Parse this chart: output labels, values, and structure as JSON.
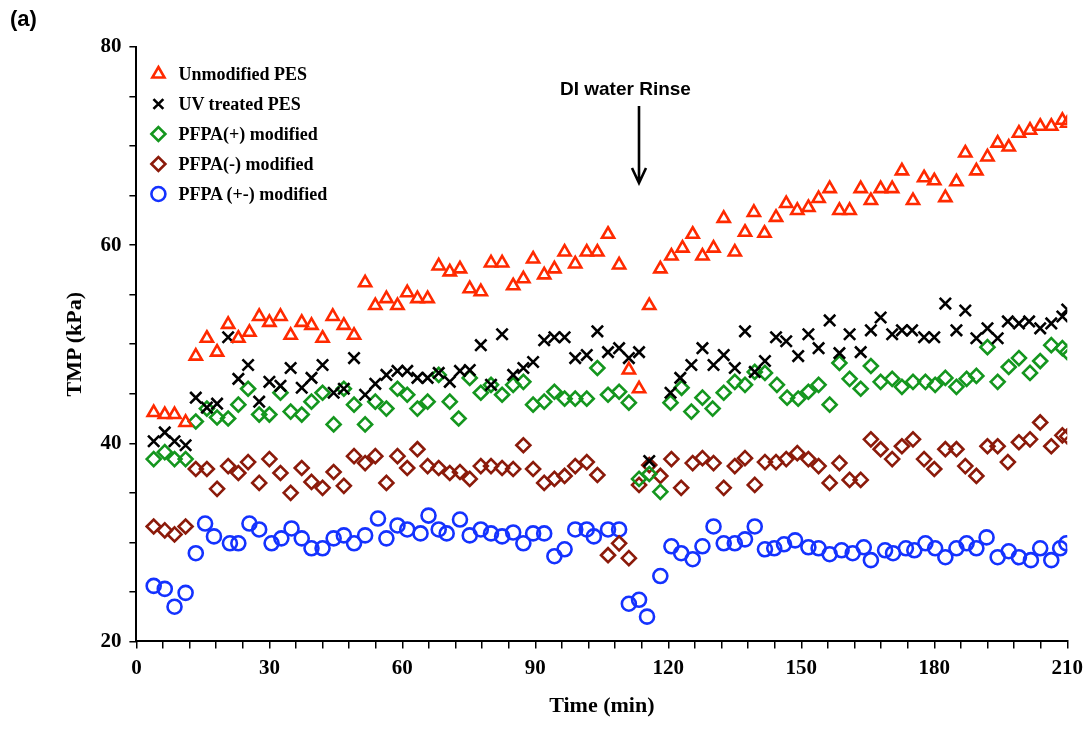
{
  "chart_data": {
    "type": "scatter",
    "xlabel": "Time (min)",
    "ylabel": "TMP (kPa)",
    "xlim": [
      0,
      210
    ],
    "ylim": [
      20,
      80
    ],
    "xticks": [
      0,
      {
        "value": 6,
        "label": null
      },
      {
        "value": 12,
        "label": null
      },
      {
        "value": 18,
        "label": null
      },
      {
        "value": 24,
        "label": null
      },
      30,
      {
        "value": 36,
        "label": null
      },
      {
        "value": 42,
        "label": null
      },
      {
        "value": 48,
        "label": null
      },
      {
        "value": 54,
        "label": null
      },
      60,
      {
        "value": 66,
        "label": null
      },
      {
        "value": 72,
        "label": null
      },
      {
        "value": 78,
        "label": null
      },
      {
        "value": 84,
        "label": null
      },
      90,
      {
        "value": 96,
        "label": null
      },
      {
        "value": 102,
        "label": null
      },
      {
        "value": 108,
        "label": null
      },
      {
        "value": 114,
        "label": null
      },
      120,
      {
        "value": 126,
        "label": null
      },
      {
        "value": 132,
        "label": null
      },
      {
        "value": 138,
        "label": null
      },
      {
        "value": 144,
        "label": null
      },
      150,
      {
        "value": 156,
        "label": null
      },
      {
        "value": 162,
        "label": null
      },
      {
        "value": 168,
        "label": null
      },
      {
        "value": 174,
        "label": null
      },
      180,
      {
        "value": 186,
        "label": null
      },
      {
        "value": 192,
        "label": null
      },
      {
        "value": 198,
        "label": null
      },
      {
        "value": 204,
        "label": null
      },
      210
    ],
    "yticks": [
      20,
      {
        "value": 25,
        "label": null
      },
      {
        "value": 30,
        "label": null
      },
      {
        "value": 35,
        "label": null
      },
      40,
      {
        "value": 45,
        "label": null
      },
      {
        "value": 50,
        "label": null
      },
      {
        "value": 55,
        "label": null
      },
      60,
      {
        "value": 65,
        "label": null
      },
      {
        "value": 70,
        "label": null
      },
      {
        "value": 75,
        "label": null
      },
      80
    ],
    "grid": false,
    "legend": "top left",
    "annotations": [
      "(a)",
      "DI water Rinse"
    ],
    "series": [
      {
        "name": "Unmodified PES",
        "color": "#ff2a00",
        "marker": "triangle",
        "x": [
          3.9,
          6.4,
          8.6,
          11.1,
          13.4,
          15.9,
          18.2,
          20.7,
          23,
          25.5,
          27.7,
          30,
          32.5,
          34.8,
          37.3,
          39.5,
          42,
          44.3,
          46.8,
          49.1,
          51.6,
          53.9,
          56.4,
          58.9,
          61.1,
          63.4,
          65.7,
          68.2,
          70.7,
          73,
          75.2,
          77.7,
          80,
          82.5,
          85,
          87.3,
          89.5,
          92,
          94.3,
          96.6,
          99,
          101.6,
          104,
          106.4,
          108.9,
          111.1,
          113.4,
          115.7,
          118.2,
          120.7,
          123.2,
          125.5,
          127.7,
          130.2,
          132.5,
          135,
          137.3,
          139.3,
          141.7,
          144.3,
          146.6,
          149.1,
          151.6,
          153.9,
          156.4,
          158.6,
          160.9,
          163.4,
          165.7,
          167.9,
          170.5,
          172.7,
          175.2,
          177.7,
          180,
          182.5,
          185,
          187,
          189.5,
          192,
          194.3,
          196.8,
          199.1,
          201.6,
          203.9,
          206.4,
          208.9,
          210
        ],
        "values": [
          43.1,
          42.9,
          42.9,
          42.1,
          48.8,
          50.6,
          49.2,
          52.0,
          50.6,
          51.2,
          52.8,
          52.2,
          52.8,
          50.9,
          52.2,
          51.9,
          50.6,
          52.8,
          51.9,
          50.9,
          56.2,
          53.9,
          54.6,
          53.9,
          55.2,
          54.6,
          54.6,
          57.9,
          57.3,
          57.6,
          55.6,
          55.3,
          58.2,
          58.2,
          55.9,
          56.6,
          58.6,
          57.0,
          57.6,
          59.3,
          58.1,
          59.3,
          59.3,
          61.1,
          58.0,
          47.4,
          45.5,
          53.9,
          57.6,
          58.9,
          59.7,
          61.1,
          58.9,
          59.7,
          62.7,
          59.3,
          61.3,
          63.3,
          61.2,
          62.8,
          64.2,
          63.5,
          63.8,
          64.7,
          65.7,
          63.5,
          63.5,
          65.7,
          64.5,
          65.7,
          65.7,
          67.5,
          64.5,
          66.8,
          66.5,
          64.8,
          66.4,
          69.3,
          67.5,
          68.9,
          70.3,
          69.9,
          71.3,
          71.6,
          72.0,
          72.0,
          72.6,
          72.3
        ]
      },
      {
        "name": "UV treated PES",
        "color": "#000000",
        "marker": "cross",
        "x": [
          3.9,
          6.4,
          8.6,
          11.1,
          13.4,
          15.9,
          18.2,
          20.7,
          23,
          25.2,
          27.7,
          30,
          32.5,
          34.8,
          37.3,
          39.5,
          42,
          44.5,
          46.8,
          49.1,
          51.6,
          53.9,
          56.4,
          58.9,
          61.1,
          63.4,
          65.7,
          68.2,
          70.7,
          73,
          75.2,
          77.7,
          80,
          82.5,
          85,
          87.3,
          89.5,
          92,
          94.3,
          96.6,
          99,
          101.6,
          104,
          106.4,
          108.9,
          111.1,
          113.4,
          115.7,
          120.5,
          122.7,
          125.2,
          127.7,
          130.2,
          132.5,
          135,
          137.3,
          139.5,
          141.8,
          144.3,
          146.6,
          149.3,
          151.6,
          153.9,
          156.4,
          158.6,
          160.9,
          163.4,
          165.7,
          167.9,
          170.5,
          172.7,
          175,
          177.7,
          180,
          182.5,
          185,
          187,
          189.5,
          192,
          194.3,
          196.6,
          199.1,
          201.4,
          203.9,
          206.4,
          208.9,
          210
        ],
        "values": [
          40.2,
          41.1,
          40.2,
          39.8,
          44.6,
          43.6,
          44.0,
          50.7,
          46.5,
          47.9,
          44.2,
          46.2,
          45.8,
          47.6,
          45.6,
          46.6,
          47.9,
          45.1,
          45.5,
          48.6,
          44.9,
          46.0,
          46.9,
          47.3,
          47.3,
          46.6,
          46.6,
          47.1,
          46.2,
          47.3,
          47.4,
          49.9,
          45.9,
          51.0,
          46.9,
          47.6,
          48.2,
          50.4,
          50.7,
          50.7,
          48.6,
          48.9,
          51.3,
          49.2,
          49.6,
          48.6,
          49.2,
          38.2,
          45.1,
          46.6,
          47.9,
          49.6,
          47.9,
          48.9,
          47.6,
          51.3,
          47.2,
          48.3,
          50.7,
          50.3,
          48.8,
          51.0,
          49.6,
          52.4,
          49.1,
          51.0,
          49.2,
          51.4,
          52.7,
          51.0,
          51.4,
          51.4,
          50.7,
          50.7,
          54.1,
          51.4,
          53.4,
          50.6,
          51.6,
          50.6,
          52.3,
          52.1,
          52.3,
          51.6,
          52.1,
          52.8,
          53.5
        ]
      },
      {
        "name": "PFPA(+) modified",
        "color": "#14961e",
        "marker": "diamond",
        "x": [
          3.9,
          6.4,
          8.6,
          11.1,
          13.4,
          15.9,
          18.2,
          20.7,
          23,
          25.2,
          27.7,
          30,
          32.5,
          34.8,
          37.3,
          39.5,
          42,
          44.5,
          46.8,
          49.1,
          51.6,
          53.9,
          56.4,
          58.9,
          61.1,
          63.4,
          65.7,
          68.2,
          70.7,
          72.7,
          75.2,
          77.7,
          80,
          82.5,
          85,
          87.3,
          89.5,
          92,
          94.3,
          96.6,
          99,
          101.6,
          104,
          106.4,
          108.9,
          111.1,
          113.4,
          115.7,
          118.2,
          120.5,
          123,
          125.2,
          127.7,
          130,
          132.5,
          135,
          137.3,
          139.5,
          141.8,
          144.5,
          146.8,
          149.3,
          151.6,
          153.9,
          156.4,
          158.6,
          160.9,
          163.4,
          165.7,
          167.9,
          170.5,
          172.7,
          175.2,
          178,
          180.2,
          182.5,
          185,
          187.3,
          189.5,
          192,
          194.3,
          196.8,
          199.1,
          201.6,
          203.9,
          206.4,
          208.9,
          210
        ],
        "values": [
          38.4,
          39.1,
          38.4,
          38.4,
          42.2,
          43.5,
          42.6,
          42.5,
          43.9,
          45.5,
          42.9,
          42.9,
          45.1,
          43.2,
          42.9,
          44.2,
          45.1,
          41.9,
          45.5,
          43.9,
          41.9,
          44.2,
          43.5,
          45.5,
          44.9,
          43.5,
          44.2,
          46.9,
          44.2,
          42.5,
          46.6,
          45.1,
          45.9,
          44.9,
          45.9,
          46.2,
          43.9,
          44.2,
          45.2,
          44.5,
          44.5,
          44.5,
          47.6,
          44.9,
          45.2,
          44.1,
          36.4,
          36.9,
          35.1,
          44.1,
          45.6,
          43.2,
          44.6,
          43.5,
          45.1,
          46.2,
          45.9,
          47.2,
          47.1,
          45.9,
          44.6,
          44.5,
          45.2,
          45.9,
          43.9,
          48.1,
          46.5,
          45.5,
          47.8,
          46.2,
          46.5,
          45.7,
          46.2,
          46.2,
          45.9,
          46.6,
          45.7,
          46.5,
          46.8,
          49.7,
          46.2,
          47.7,
          48.6,
          47.1,
          48.3,
          49.9,
          49.6,
          49.2
        ]
      },
      {
        "name": "PFPA(-) modified",
        "color": "#8b1a0a",
        "marker": "diamond",
        "x": [
          3.9,
          6.4,
          8.6,
          11.1,
          13.4,
          15.9,
          18.2,
          20.7,
          23,
          25.2,
          27.7,
          30,
          32.5,
          34.8,
          37.3,
          39.5,
          42,
          44.5,
          46.8,
          49.1,
          51.6,
          53.9,
          56.4,
          58.9,
          61.1,
          63.4,
          65.7,
          68.2,
          70.7,
          73,
          75.2,
          77.7,
          80,
          82.5,
          85,
          87.3,
          89.5,
          92,
          94.3,
          96.6,
          99,
          101.6,
          104,
          106.4,
          108.9,
          111.1,
          113.4,
          115.7,
          118.2,
          120.7,
          122.9,
          125.5,
          127.7,
          130.2,
          132.5,
          135,
          137.3,
          139.5,
          141.8,
          144.3,
          146.6,
          149.1,
          151.6,
          153.9,
          156.4,
          158.6,
          160.9,
          163.4,
          165.7,
          167.9,
          170.5,
          172.7,
          175.2,
          177.7,
          180,
          182.5,
          185,
          187,
          189.5,
          192,
          194.3,
          196.6,
          199.1,
          201.6,
          203.9,
          206.4,
          208.9,
          210
        ],
        "values": [
          31.6,
          31.2,
          30.8,
          31.6,
          37.4,
          37.4,
          35.4,
          37.7,
          37.0,
          38.1,
          36.0,
          38.4,
          37.0,
          35.0,
          37.5,
          36.1,
          35.5,
          37.1,
          35.7,
          38.7,
          38.0,
          38.7,
          36.0,
          38.7,
          37.5,
          39.4,
          37.7,
          37.5,
          37.0,
          37.1,
          36.4,
          37.7,
          37.7,
          37.5,
          37.4,
          39.8,
          37.4,
          36.0,
          36.4,
          36.7,
          37.7,
          38.1,
          36.8,
          28.7,
          29.9,
          28.4,
          35.8,
          37.8,
          36.7,
          38.4,
          35.5,
          38.0,
          38.5,
          38.0,
          35.5,
          37.7,
          38.5,
          35.8,
          38.1,
          38.1,
          38.4,
          39.0,
          38.4,
          37.7,
          36.0,
          38.0,
          36.3,
          36.3,
          40.4,
          39.4,
          38.4,
          39.7,
          40.4,
          38.4,
          37.4,
          39.4,
          39.4,
          37.7,
          36.7,
          39.7,
          39.7,
          38.1,
          40.1,
          40.4,
          42.1,
          39.7,
          40.8,
          40.7
        ]
      },
      {
        "name": "PFPA (+-) modified",
        "color": "#1432ff",
        "marker": "circle",
        "x": [
          3.9,
          6.4,
          8.6,
          11.1,
          13.4,
          15.5,
          17.5,
          21.1,
          23,
          25.5,
          27.7,
          30.5,
          32.7,
          35,
          37.3,
          39.5,
          42,
          44.5,
          46.8,
          49.1,
          51.6,
          54.5,
          56.4,
          58.9,
          61.1,
          64.1,
          65.9,
          68.2,
          70,
          73,
          75.2,
          77.7,
          80,
          82.5,
          85,
          87.3,
          89.5,
          92,
          94.3,
          96.6,
          99,
          101.6,
          103.2,
          106.4,
          108.9,
          111.1,
          113.4,
          115.2,
          118.2,
          120.7,
          122.9,
          125.5,
          127.7,
          130.2,
          132.5,
          135,
          137.3,
          139.5,
          141.8,
          143.9,
          146.1,
          148.6,
          151.6,
          153.9,
          156.4,
          159.1,
          161.6,
          164.1,
          165.7,
          168.9,
          170.7,
          173.6,
          175.5,
          178,
          180.2,
          182.5,
          185,
          187.3,
          189.5,
          191.8,
          194.3,
          196.8,
          199.1,
          201.8,
          203.9,
          206.4,
          208.4,
          209.8
        ],
        "values": [
          25.6,
          25.3,
          23.5,
          24.9,
          28.9,
          31.9,
          30.6,
          29.9,
          29.9,
          31.9,
          31.3,
          29.9,
          30.4,
          31.4,
          30.4,
          29.4,
          29.4,
          30.4,
          30.7,
          29.9,
          30.7,
          32.4,
          30.4,
          31.7,
          31.3,
          30.9,
          32.7,
          31.3,
          30.9,
          32.3,
          30.7,
          31.3,
          30.9,
          30.6,
          31.0,
          29.9,
          30.9,
          30.9,
          28.6,
          29.3,
          31.3,
          31.3,
          30.6,
          31.3,
          31.3,
          23.8,
          24.2,
          22.5,
          26.6,
          29.6,
          28.9,
          28.3,
          29.6,
          31.6,
          29.9,
          29.9,
          30.3,
          31.6,
          29.3,
          29.4,
          29.8,
          30.2,
          29.5,
          29.4,
          28.8,
          29.2,
          28.9,
          29.5,
          28.2,
          29.2,
          28.9,
          29.4,
          29.2,
          29.9,
          29.4,
          28.5,
          29.4,
          29.9,
          29.4,
          30.5,
          28.5,
          29.1,
          28.5,
          28.2,
          29.4,
          28.2,
          29.4,
          29.9
        ]
      }
    ]
  }
}
